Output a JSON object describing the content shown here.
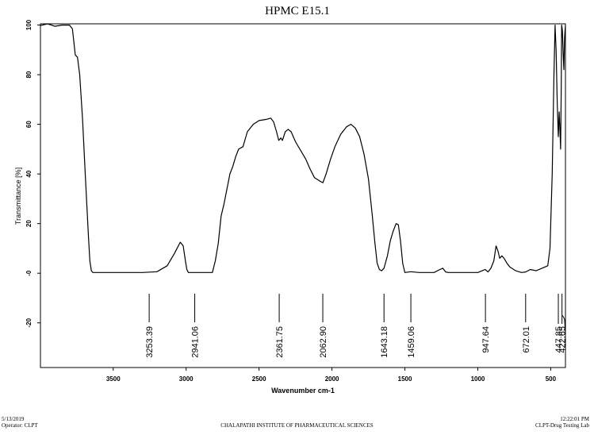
{
  "chart_data": {
    "type": "line",
    "title": "HPMC E15.1",
    "xlabel": "Wavenumber cm-1",
    "ylabel": "Transmittance [%]",
    "xlim": [
      3999,
      399
    ],
    "ylim": [
      -38,
      100.5
    ],
    "x_ticks": [
      3500,
      3000,
      2500,
      2000,
      1500,
      1000,
      500
    ],
    "x_tick_labels": [
      "3500",
      "3000",
      "2500",
      "2000",
      "1500",
      "1000",
      "500"
    ],
    "y_ticks": [
      100,
      80,
      60,
      40,
      20,
      0,
      -20
    ],
    "y_tick_labels": [
      "100",
      "80",
      "60",
      "40",
      "20",
      "-0",
      "-20"
    ],
    "x_reversed": true,
    "grid": false,
    "legend": "none",
    "line_color": "#000000",
    "series": [
      {
        "points": [
          [
            3999,
            99.8
          ],
          [
            3950,
            100.5
          ],
          [
            3900,
            99.5
          ],
          [
            3850,
            100.0
          ],
          [
            3800,
            100.0
          ],
          [
            3780,
            98.5
          ],
          [
            3760,
            88.0
          ],
          [
            3745,
            87.0
          ],
          [
            3730,
            80.0
          ],
          [
            3710,
            62.0
          ],
          [
            3690,
            38.0
          ],
          [
            3670,
            15.0
          ],
          [
            3660,
            5.0
          ],
          [
            3650,
            1.0
          ],
          [
            3640,
            0.3
          ],
          [
            3600,
            0.3
          ],
          [
            3300,
            0.3
          ],
          [
            3200,
            0.6
          ],
          [
            3130,
            3.0
          ],
          [
            3080,
            8.0
          ],
          [
            3040,
            12.5
          ],
          [
            3020,
            11.0
          ],
          [
            3005,
            5.0
          ],
          [
            2995,
            1.5
          ],
          [
            2985,
            0.3
          ],
          [
            2820,
            0.3
          ],
          [
            2800,
            5.0
          ],
          [
            2780,
            12.0
          ],
          [
            2760,
            23.0
          ],
          [
            2740,
            28.0
          ],
          [
            2720,
            34.0
          ],
          [
            2700,
            40.0
          ],
          [
            2680,
            43.0
          ],
          [
            2660,
            47.0
          ],
          [
            2640,
            50.0
          ],
          [
            2610,
            51.0
          ],
          [
            2580,
            57.0
          ],
          [
            2540,
            60.0
          ],
          [
            2500,
            61.5
          ],
          [
            2450,
            62.0
          ],
          [
            2420,
            62.5
          ],
          [
            2400,
            61.0
          ],
          [
            2380,
            57.0
          ],
          [
            2365,
            53.5
          ],
          [
            2350,
            54.5
          ],
          [
            2340,
            53.5
          ],
          [
            2320,
            57.0
          ],
          [
            2300,
            58.0
          ],
          [
            2280,
            57.0
          ],
          [
            2250,
            53.0
          ],
          [
            2220,
            50.0
          ],
          [
            2180,
            46.0
          ],
          [
            2150,
            42.0
          ],
          [
            2120,
            38.5
          ],
          [
            2080,
            37.0
          ],
          [
            2062,
            36.5
          ],
          [
            2040,
            40.0
          ],
          [
            2010,
            46.0
          ],
          [
            1980,
            51.0
          ],
          [
            1940,
            56.0
          ],
          [
            1900,
            59.0
          ],
          [
            1870,
            60.0
          ],
          [
            1840,
            58.5
          ],
          [
            1810,
            55.0
          ],
          [
            1780,
            48.0
          ],
          [
            1750,
            38.0
          ],
          [
            1725,
            24.0
          ],
          [
            1705,
            12.0
          ],
          [
            1690,
            4.0
          ],
          [
            1675,
            1.5
          ],
          [
            1660,
            1.0
          ],
          [
            1643,
            2.0
          ],
          [
            1620,
            7.0
          ],
          [
            1600,
            13.0
          ],
          [
            1580,
            17.0
          ],
          [
            1560,
            20.0
          ],
          [
            1545,
            19.5
          ],
          [
            1530,
            13.0
          ],
          [
            1515,
            4.0
          ],
          [
            1500,
            0.3
          ],
          [
            1460,
            0.6
          ],
          [
            1400,
            0.3
          ],
          [
            1300,
            0.3
          ],
          [
            1260,
            1.5
          ],
          [
            1240,
            2.0
          ],
          [
            1220,
            0.5
          ],
          [
            1200,
            0.3
          ],
          [
            1000,
            0.3
          ],
          [
            970,
            1.0
          ],
          [
            950,
            1.5
          ],
          [
            930,
            0.5
          ],
          [
            910,
            2.0
          ],
          [
            890,
            5.0
          ],
          [
            875,
            11.0
          ],
          [
            862,
            9.0
          ],
          [
            850,
            6.0
          ],
          [
            835,
            7.0
          ],
          [
            820,
            6.0
          ],
          [
            800,
            4.0
          ],
          [
            780,
            2.5
          ],
          [
            740,
            1.0
          ],
          [
            700,
            0.3
          ],
          [
            672,
            0.5
          ],
          [
            640,
            1.5
          ],
          [
            600,
            1.0
          ],
          [
            560,
            2.0
          ],
          [
            520,
            3.0
          ],
          [
            505,
            10.0
          ],
          [
            490,
            40.0
          ],
          [
            478,
            80.0
          ],
          [
            470,
            100.0
          ],
          [
            463,
            90.0
          ],
          [
            455,
            68.0
          ],
          [
            448,
            55.0
          ],
          [
            442,
            65.0
          ],
          [
            437,
            58.0
          ],
          [
            432,
            50.0
          ],
          [
            428,
            75.0
          ],
          [
            425,
            100.0
          ],
          [
            420,
            98.0
          ],
          [
            414,
            88.0
          ],
          [
            410,
            82.0
          ],
          [
            405,
            95.0
          ],
          [
            399,
            100.0
          ]
        ],
        "tail_points": [
          [
            420,
            -17.0
          ],
          [
            405,
            -18.5
          ],
          [
            399,
            -25.0
          ]
        ]
      }
    ],
    "peak_labels": [
      "3253.39",
      "2941.06",
      "2361.75",
      "2062.90",
      "1643.18",
      "1459.06",
      "947.64",
      "672.01",
      "447.85",
      "422.65"
    ],
    "peak_positions": [
      3253.39,
      2941.06,
      2361.75,
      2062.9,
      1643.18,
      1459.06,
      947.64,
      672.01,
      447.85,
      422.65
    ]
  },
  "footer": {
    "date": "5/13/2019",
    "operator": "Operator: CLPT",
    "institute": "CHALAPATHI INSTITUTE OF PHARMACEUTICAL SCIENCES",
    "time": "12:22:01 PM",
    "lab": "CLPT-Drug Testing Lab"
  }
}
